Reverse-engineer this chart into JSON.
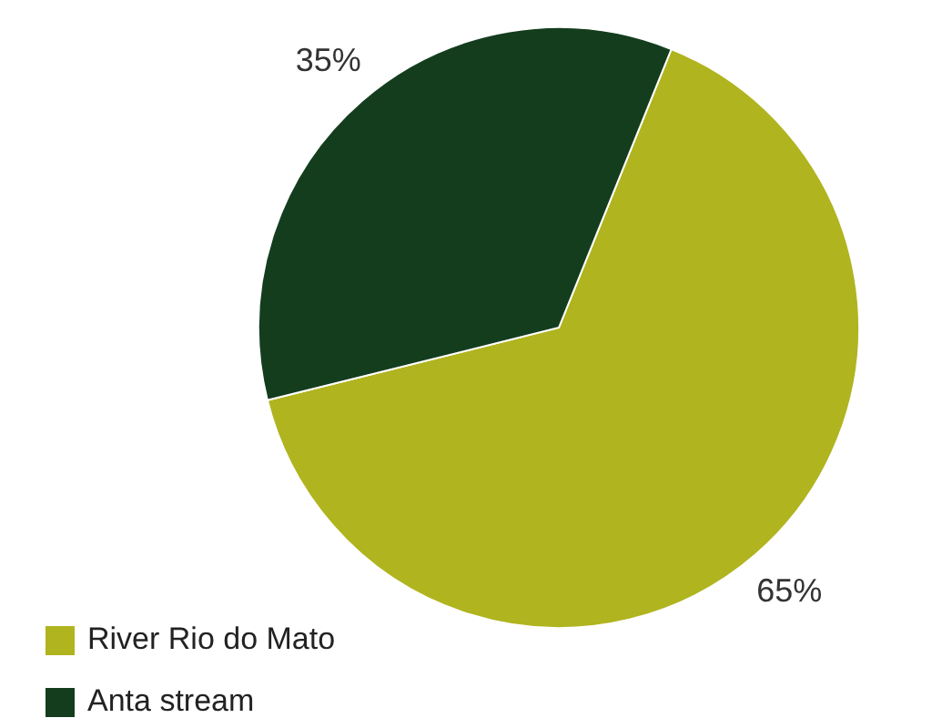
{
  "chart_data": {
    "type": "pie",
    "categories": [
      "River Rio do Mato",
      "Anta stream"
    ],
    "values": [
      65,
      35
    ],
    "colors": [
      "#b0b41f",
      "#143d1e"
    ],
    "value_labels": [
      "65%",
      "35%"
    ],
    "legend": "bottom left"
  }
}
